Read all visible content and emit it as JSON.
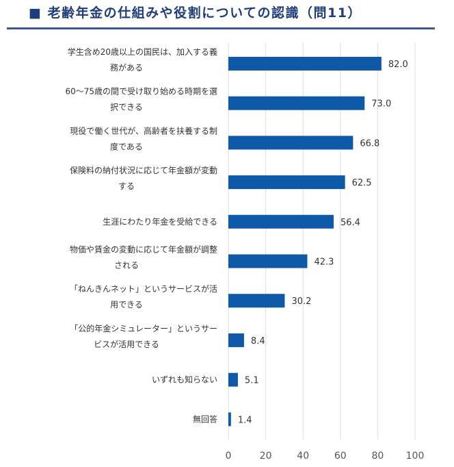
{
  "title": "■ 老齢年金の仕組みや役割についての認識（問11）",
  "chart_data": {
    "type": "bar",
    "orientation": "horizontal",
    "categories": [
      [
        "学生含め20歳以上の国民は、加入する義",
        "務がある"
      ],
      [
        "60～75歳の間で受け取り始める時期を選",
        "択できる"
      ],
      [
        "現役で働く世代が、高齢者を扶養する制",
        "度である"
      ],
      [
        "保険料の納付状況に応じて年金額が変動",
        "する"
      ],
      [
        "生涯にわたり年金を受給できる"
      ],
      [
        "物価や賃金の変動に応じて年金額が調整",
        "される"
      ],
      [
        "「ねんきんネット」というサービスが活",
        "用できる"
      ],
      [
        "「公的年金シミュレーター」というサー",
        "ビスが活用できる"
      ],
      [
        "いずれも知らない"
      ],
      [
        "無回答"
      ]
    ],
    "values": [
      82.0,
      73.0,
      66.8,
      62.5,
      56.4,
      42.3,
      30.2,
      8.4,
      5.1,
      1.4
    ],
    "value_labels": [
      "82.0",
      "73.0",
      "66.8",
      "62.5",
      "56.4",
      "42.3",
      "30.2",
      "8.4",
      "5.1",
      "1.4"
    ],
    "xlim": [
      0,
      100
    ],
    "xticks": [
      "0",
      "20",
      "40",
      "60",
      "80",
      "100"
    ],
    "grid": true,
    "bar_color": "#0f5aa8"
  }
}
